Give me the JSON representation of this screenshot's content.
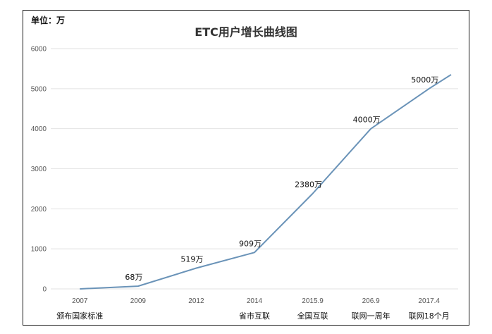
{
  "chart_data": {
    "type": "line",
    "title": "ETC用户增长曲线图",
    "unit_label": "单位：万",
    "categories": [
      "2007",
      "2009",
      "2012",
      "2014",
      "2015.9",
      "206.9",
      "2017.4"
    ],
    "values": [
      0,
      68,
      519,
      909,
      2380,
      4000,
      5000
    ],
    "end_value": 5350,
    "data_labels": [
      "",
      "68万",
      "519万",
      "909万",
      "2380万",
      "4000万",
      "5000万"
    ],
    "event_labels": [
      "颁布国家标准",
      "",
      "",
      "省市互联",
      "全国互联",
      "联网一周年",
      "联网18个月"
    ],
    "y_ticks": [
      "0",
      "1000",
      "2000",
      "3000",
      "4000",
      "5000",
      "6000"
    ],
    "ylim": [
      0,
      6000
    ],
    "grid": true,
    "line_color": "#6a93b8",
    "grid_color": "#e2e2e2"
  }
}
